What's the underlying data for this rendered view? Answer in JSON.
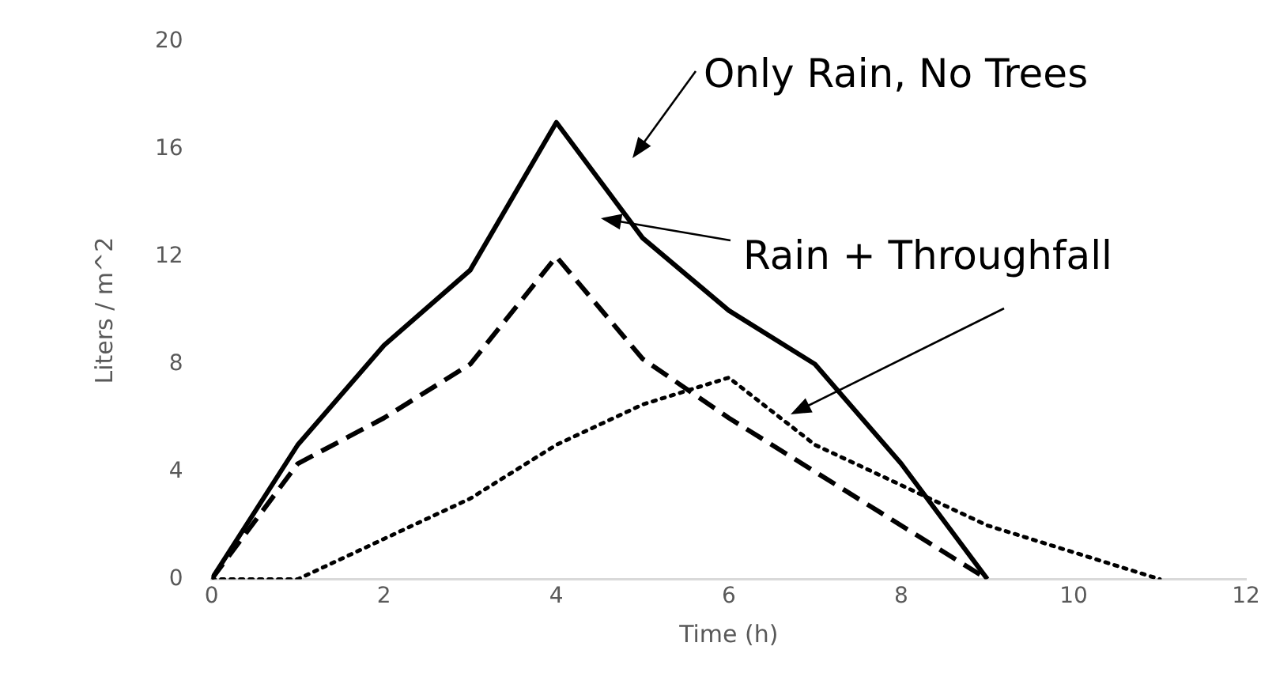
{
  "chart_data": {
    "type": "line",
    "xlabel": "Time (h)",
    "ylabel": "Liters / m^2",
    "xlim": [
      0,
      12
    ],
    "xticks": [
      0,
      2,
      4,
      6,
      8,
      10,
      12
    ],
    "ylim": [
      0,
      20
    ],
    "yticks": [
      0,
      4,
      8,
      12,
      16,
      20
    ],
    "grid": false,
    "legend": false,
    "marker": "none",
    "annotations": [
      "Only Rain, No Trees",
      "Rain + Throughfall"
    ],
    "series": [
      {
        "color": "#000000",
        "line_style": "solid",
        "x": [
          0,
          1,
          2,
          3,
          4,
          5,
          6,
          7,
          8,
          9
        ],
        "values": [
          0,
          5,
          8.7,
          11.5,
          17,
          12.7,
          10,
          8,
          4.3,
          0
        ]
      },
      {
        "color": "#000000",
        "line_style": "dashed",
        "x": [
          0,
          1,
          2,
          3,
          4,
          5,
          6,
          7,
          8,
          9
        ],
        "values": [
          0,
          4.3,
          6,
          8,
          12,
          8.2,
          6,
          4,
          2,
          0
        ]
      },
      {
        "color": "#000000",
        "line_style": "dotted",
        "x": [
          0,
          1,
          2,
          3,
          4,
          5,
          6,
          7,
          8,
          9,
          10,
          11
        ],
        "values": [
          0,
          0,
          1.5,
          3,
          5,
          6.5,
          7.5,
          5,
          3.5,
          2,
          1,
          0
        ]
      }
    ]
  }
}
